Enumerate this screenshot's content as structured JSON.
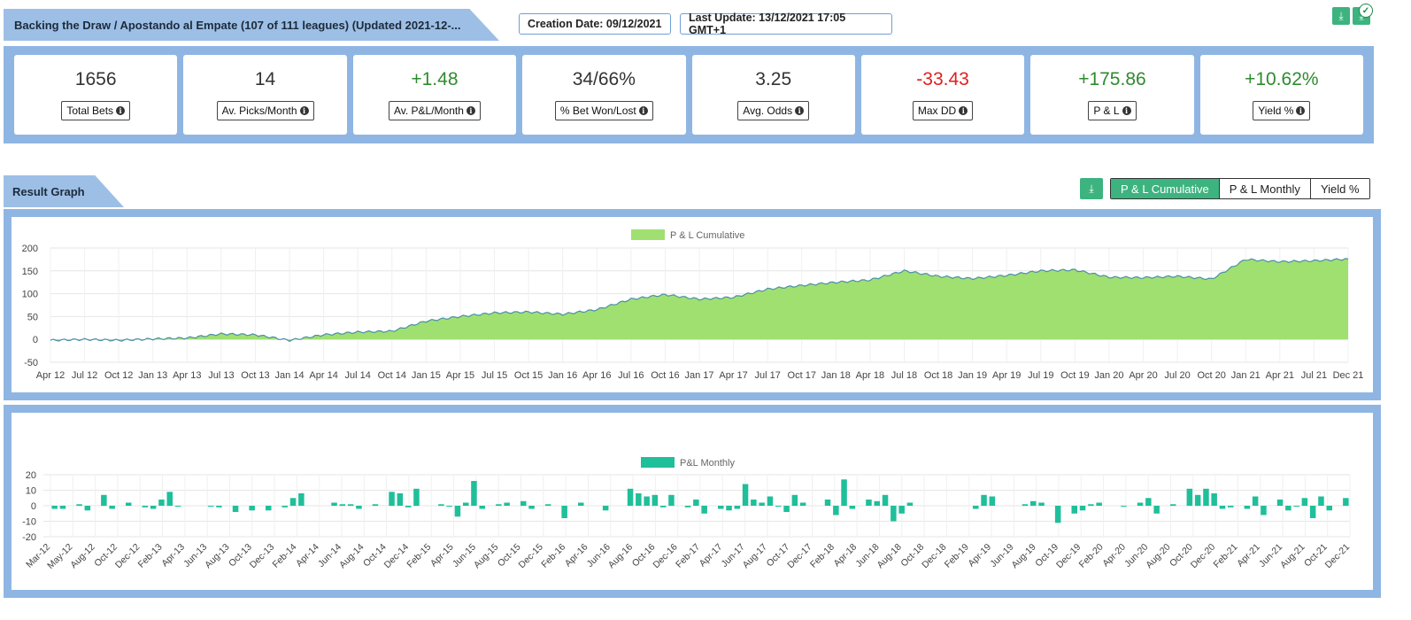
{
  "header": {
    "strategy_title": "Backing the Draw / Apostando al Empate (107 of 111 leagues) (Updated 2021-12-...",
    "creation_date": "Creation Date: 09/12/2021",
    "last_update": "Last Update: 13/12/2021 17:05 GMT+1"
  },
  "icons": {
    "download": "download-icon",
    "check": "check-circle-icon",
    "info": "info-icon"
  },
  "stats": [
    {
      "value": "1656",
      "label": "Total Bets",
      "tone": "neutral"
    },
    {
      "value": "14",
      "label": "Av. Picks/Month",
      "tone": "neutral"
    },
    {
      "value": "+1.48",
      "label": "Av. P&L/Month",
      "tone": "pos"
    },
    {
      "value": "34/66%",
      "label": "% Bet Won/Lost",
      "tone": "neutral"
    },
    {
      "value": "3.25",
      "label": "Avg. Odds",
      "tone": "neutral"
    },
    {
      "value": "-33.43",
      "label": "Max DD",
      "tone": "neg"
    },
    {
      "value": "+175.86",
      "label": "P & L",
      "tone": "pos"
    },
    {
      "value": "+10.62%",
      "label": "Yield %",
      "tone": "pos"
    }
  ],
  "graph": {
    "section_title": "Result Graph",
    "toggles": [
      "P & L Cumulative",
      "P & L Monthly",
      "Yield %"
    ],
    "active_toggle": 0
  },
  "colors": {
    "accent": "#3db37f",
    "panel": "#8fb6e3",
    "positive": "#2f8b2f",
    "negative": "#e01f1f",
    "area_fill": "#a0e070",
    "area_line": "#4a8fa8",
    "bar": "#1fbf9a"
  },
  "chart_data": [
    {
      "type": "area",
      "legend": "P & L Cumulative",
      "legend_position": "top-center",
      "ylim": [
        -50,
        200
      ],
      "yticks": [
        200,
        150,
        100,
        50,
        0,
        -50
      ],
      "grid": true,
      "x_tick_labels": [
        "Apr 12",
        "Jul 12",
        "Oct 12",
        "Jan 13",
        "Apr 13",
        "Jul 13",
        "Oct 13",
        "Jan 14",
        "Apr 14",
        "Jul 14",
        "Oct 14",
        "Jan 15",
        "Apr 15",
        "Jul 15",
        "Oct 15",
        "Jan 16",
        "Apr 16",
        "Jul 16",
        "Oct 16",
        "Jan 17",
        "Apr 17",
        "Jul 17",
        "Oct 17",
        "Jan 18",
        "Apr 18",
        "Jul 18",
        "Oct 18",
        "Jan 19",
        "Apr 19",
        "Jul 19",
        "Oct 19",
        "Jan 20",
        "Apr 20",
        "Jul 20",
        "Oct 20",
        "Jan 21",
        "Apr 21",
        "Jul 21",
        "Dec 21"
      ],
      "x": [
        "Apr 12",
        "Jul 12",
        "Oct 12",
        "Jan 13",
        "Apr 13",
        "Jul 13",
        "Oct 13",
        "Jan 14",
        "Apr 14",
        "Jul 14",
        "Oct 14",
        "Jan 15",
        "Apr 15",
        "Jul 15",
        "Oct 15",
        "Jan 16",
        "Apr 16",
        "Jul 16",
        "Oct 16",
        "Jan 17",
        "Apr 17",
        "Jul 17",
        "Oct 17",
        "Jan 18",
        "Apr 18",
        "Jul 18",
        "Oct 18",
        "Jan 19",
        "Apr 19",
        "Jul 19",
        "Oct 19",
        "Jan 20",
        "Apr 20",
        "Jul 20",
        "Oct 20",
        "Jan 21",
        "Apr 21",
        "Jul 21",
        "Dec 21"
      ],
      "values": [
        -2,
        0,
        -2,
        1,
        3,
        12,
        10,
        -2,
        10,
        16,
        18,
        40,
        50,
        58,
        60,
        55,
        65,
        88,
        98,
        88,
        92,
        110,
        118,
        125,
        130,
        150,
        138,
        133,
        140,
        150,
        152,
        136,
        135,
        138,
        132,
        175,
        170,
        172,
        176
      ]
    },
    {
      "type": "bar",
      "legend": "P&L Monthly",
      "legend_position": "top-center",
      "ylim": [
        -20,
        20
      ],
      "yticks": [
        20,
        10,
        0,
        -10,
        -20
      ],
      "grid": true,
      "x_tick_labels": [
        "Mar-12",
        "May-12",
        "Aug-12",
        "Oct-12",
        "Dec-12",
        "Feb-13",
        "Apr-13",
        "Jun-13",
        "Aug-13",
        "Oct-13",
        "Dec-13",
        "Feb-14",
        "Apr-14",
        "Jun-14",
        "Aug-14",
        "Oct-14",
        "Dec-14",
        "Feb-15",
        "Apr-15",
        "Jun-15",
        "Aug-15",
        "Oct-15",
        "Dec-15",
        "Feb-16",
        "Apr-16",
        "Jun-16",
        "Aug-16",
        "Oct-16",
        "Dec-16",
        "Feb-17",
        "Apr-17",
        "Jun-17",
        "Aug-17",
        "Oct-17",
        "Dec-17",
        "Feb-18",
        "Apr-18",
        "Jun-18",
        "Aug-18",
        "Oct-18",
        "Dec-18",
        "Feb-19",
        "Apr-19",
        "Jun-19",
        "Aug-19",
        "Oct-19",
        "Dec-19",
        "Feb-20",
        "Apr-20",
        "Jun-20",
        "Aug-20",
        "Oct-20",
        "Dec-20",
        "Feb-21",
        "Apr-21",
        "Jun-21",
        "Aug-21",
        "Oct-21",
        "Dec-21"
      ],
      "values": [
        -2,
        -2,
        0,
        1,
        -3,
        0,
        7,
        -2,
        0,
        2,
        0,
        -1,
        -2,
        4,
        9,
        -0.5,
        0,
        0,
        0,
        -0.5,
        -1,
        0,
        -4,
        0,
        -3,
        0,
        -3,
        0,
        -1,
        5,
        8,
        0,
        0,
        0,
        2,
        1,
        1,
        -2,
        0,
        1,
        0,
        9,
        8,
        -1,
        11,
        0,
        0,
        1,
        -0.5,
        -7,
        2,
        16,
        -2,
        0,
        1,
        2,
        0,
        3,
        -2,
        0,
        1,
        0,
        -8,
        0,
        2,
        0,
        0,
        -3,
        0,
        0,
        11,
        8,
        6,
        7,
        -1,
        7,
        0,
        -1,
        4,
        -5,
        0,
        -2,
        -3,
        -2,
        14,
        4,
        2,
        6,
        -0.5,
        -4,
        7,
        2,
        0,
        0,
        4,
        -6,
        17,
        -2,
        0,
        4,
        3,
        7,
        -10,
        -5,
        2,
        0,
        0,
        0,
        0,
        0,
        0,
        0,
        -2,
        7,
        6,
        0,
        0,
        0,
        1,
        3,
        2,
        0,
        -11,
        0,
        -5,
        -3,
        1,
        2,
        0,
        0,
        -0.5,
        0,
        2,
        5,
        -5,
        0,
        1,
        0,
        11,
        7,
        11,
        8,
        -2,
        -1,
        0,
        -2,
        6,
        -6,
        0,
        4,
        -3,
        -0.5,
        5,
        -8,
        6,
        -3,
        0,
        5
      ]
    }
  ]
}
